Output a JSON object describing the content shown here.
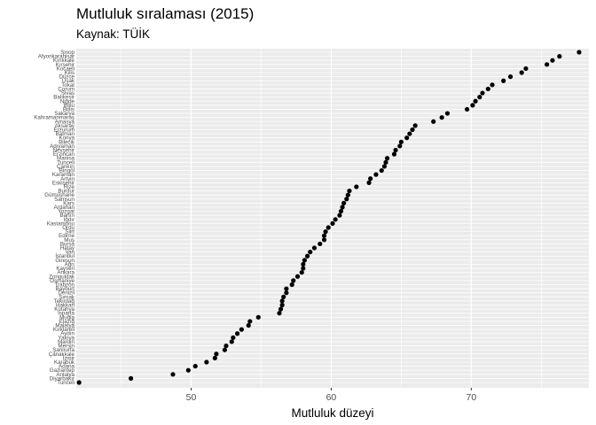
{
  "chart_data": {
    "type": "scatter",
    "title": "Mutluluk sıralaması (2015)",
    "subtitle": "Kaynak: TÜİK",
    "xlabel": "Mutluluk düzeyi",
    "ylabel": "",
    "xlim": [
      41.8,
      78.4
    ],
    "x_ticks": [
      50,
      60,
      70
    ],
    "grid": true,
    "legend": "none",
    "colors": {
      "panel": "#ebebeb",
      "grid": "#ffffff",
      "point": "#000000",
      "tick_text": "#4d4d4d"
    },
    "points": [
      {
        "province": "Sinop",
        "value": 77.7
      },
      {
        "province": "Afyonkarahisar",
        "value": 76.3
      },
      {
        "province": "Kırıkkale",
        "value": 75.8
      },
      {
        "province": "Kırşehir",
        "value": 75.4
      },
      {
        "province": "Kocaeli",
        "value": 73.9
      },
      {
        "province": "Kilis",
        "value": 73.6
      },
      {
        "province": "Düzce",
        "value": 72.8
      },
      {
        "province": "Uşak",
        "value": 72.3
      },
      {
        "province": "Tokat",
        "value": 71.5
      },
      {
        "province": "Çorum",
        "value": 71.2
      },
      {
        "province": "Sivas",
        "value": 70.8
      },
      {
        "province": "Balıkesir",
        "value": 70.6
      },
      {
        "province": "Niğde",
        "value": 70.3
      },
      {
        "province": "Bolu",
        "value": 70.1
      },
      {
        "province": "Bitlis",
        "value": 69.7
      },
      {
        "province": "Sakarya",
        "value": 68.3
      },
      {
        "province": "Kahramanmaraş",
        "value": 67.9
      },
      {
        "province": "Amasya",
        "value": 67.3
      },
      {
        "province": "Aksaray",
        "value": 66.0
      },
      {
        "province": "Erzurum",
        "value": 65.8
      },
      {
        "province": "Batman",
        "value": 65.6
      },
      {
        "province": "Konya",
        "value": 65.4
      },
      {
        "province": "Bilecik",
        "value": 65.0
      },
      {
        "province": "Adıyaman",
        "value": 64.9
      },
      {
        "province": "Nevşehir",
        "value": 64.6
      },
      {
        "province": "Erzincan",
        "value": 64.5
      },
      {
        "province": "Manisa",
        "value": 64.0
      },
      {
        "province": "Tunceli",
        "value": 63.9
      },
      {
        "province": "Çankırı",
        "value": 63.8
      },
      {
        "province": "Bingöl",
        "value": 63.6
      },
      {
        "province": "Karaman",
        "value": 63.2
      },
      {
        "province": "Artvin",
        "value": 62.8
      },
      {
        "province": "Eskişehir",
        "value": 62.7
      },
      {
        "province": "Rize",
        "value": 61.8
      },
      {
        "province": "Burdur",
        "value": 61.3
      },
      {
        "province": "Gümüşhane",
        "value": 61.2
      },
      {
        "province": "Samsun",
        "value": 61.1
      },
      {
        "province": "Kars",
        "value": 60.9
      },
      {
        "province": "Ardahan",
        "value": 60.8
      },
      {
        "province": "Yozgat",
        "value": 60.7
      },
      {
        "province": "Bartın",
        "value": 60.6
      },
      {
        "province": "Iğdır",
        "value": 60.3
      },
      {
        "province": "Kastamonu",
        "value": 60.1
      },
      {
        "province": "Ordu",
        "value": 59.8
      },
      {
        "province": "Siirt",
        "value": 59.6
      },
      {
        "province": "Edirne",
        "value": 59.5
      },
      {
        "province": "Muş",
        "value": 59.5
      },
      {
        "province": "Bursa",
        "value": 59.2
      },
      {
        "province": "Hatay",
        "value": 58.8
      },
      {
        "province": "Van",
        "value": 58.5
      },
      {
        "province": "İstanbul",
        "value": 58.3
      },
      {
        "province": "Giresun",
        "value": 58.1
      },
      {
        "province": "Ağrı",
        "value": 58.0
      },
      {
        "province": "Kayseri",
        "value": 58.0
      },
      {
        "province": "Ankara",
        "value": 57.9
      },
      {
        "province": "Zonguldak",
        "value": 57.6
      },
      {
        "province": "Osmaniye",
        "value": 57.3
      },
      {
        "province": "Trabzon",
        "value": 57.2
      },
      {
        "province": "Bayburt",
        "value": 56.8
      },
      {
        "province": "Denizli",
        "value": 56.8
      },
      {
        "province": "Şırnak",
        "value": 56.6
      },
      {
        "province": "Tekirdağ",
        "value": 56.5
      },
      {
        "province": "Hakkari",
        "value": 56.5
      },
      {
        "province": "Kütahya",
        "value": 56.4
      },
      {
        "province": "Isparta",
        "value": 56.3
      },
      {
        "province": "Muğla",
        "value": 54.8
      },
      {
        "province": "Elazığ",
        "value": 54.2
      },
      {
        "province": "Malatya",
        "value": 54.1
      },
      {
        "province": "Kırklareli",
        "value": 53.6
      },
      {
        "province": "Aydın",
        "value": 53.3
      },
      {
        "province": "Yalova",
        "value": 53.0
      },
      {
        "province": "Mardin",
        "value": 52.9
      },
      {
        "province": "Mersin",
        "value": 52.5
      },
      {
        "province": "Şanlıurfa",
        "value": 52.4
      },
      {
        "province": "Çanakkale",
        "value": 51.8
      },
      {
        "province": "İzmir",
        "value": 51.7
      },
      {
        "province": "Karabük",
        "value": 51.1
      },
      {
        "province": "Adana",
        "value": 50.3
      },
      {
        "province": "Gaziantep",
        "value": 49.8
      },
      {
        "province": "Antalya",
        "value": 48.7
      },
      {
        "province": "Diyarbakır",
        "value": 45.7
      },
      {
        "province": "Tunceli",
        "value": 42.0
      }
    ]
  }
}
